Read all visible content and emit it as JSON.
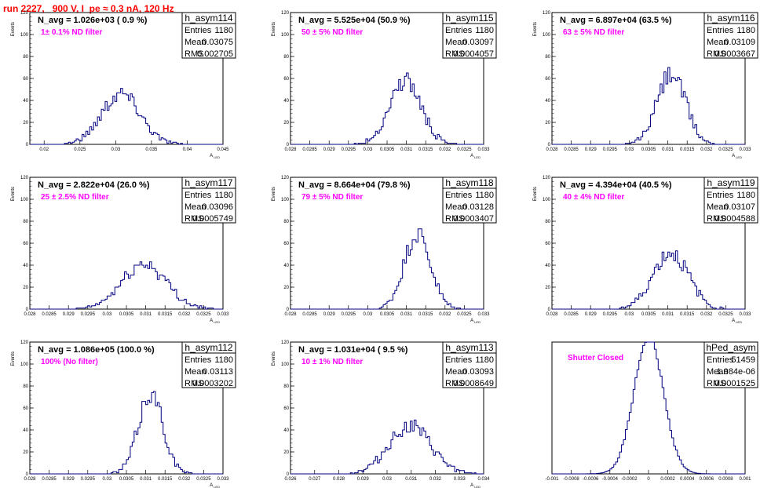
{
  "header": {
    "run_title": "run 2227,   900 V, I_pe ≈ 0.3 nA, 120 Hz"
  },
  "colors": {
    "line": "#000080",
    "annotation": "#ff00ff",
    "title": "#ff0000",
    "frame": "#000000"
  },
  "chart_data": [
    {
      "type": "bar",
      "name": "h_asym114",
      "navg": "N_avg = 1.026e+03 ( 0.9 %)",
      "annotation": "1± 0.1% ND filter",
      "stats": {
        "entries_label": "Entries",
        "entries": "1180",
        "mean_label": "Mean",
        "mean": "0.03075",
        "rms_label": "RMS",
        "rms": "0.002705"
      },
      "ylabel": "Events",
      "xlabel": "A_{LED}",
      "xlim": [
        0.018,
        0.045
      ],
      "ylim": [
        0,
        120
      ],
      "xticks": [
        "0.02",
        "0.025",
        "0.03",
        "0.035",
        "0.04",
        "0.045"
      ],
      "xtick_values": [
        0.02,
        0.025,
        0.03,
        0.035,
        0.04,
        0.045
      ],
      "yticks": [
        "0",
        "20",
        "40",
        "60",
        "80",
        "100",
        "120"
      ],
      "hist": {
        "mean": 0.03075,
        "rms": 0.002705,
        "n": 1180,
        "bins": 100,
        "seed": 114
      }
    },
    {
      "type": "bar",
      "name": "h_asym115",
      "navg": "N_avg = 5.525e+04 (50.9 %)",
      "annotation": "50 ± 5% ND filter",
      "stats": {
        "entries_label": "Entries",
        "entries": "1180",
        "mean_label": "Mean",
        "mean": "0.03097",
        "rms_label": "RMS",
        "rms": "0.0004057"
      },
      "ylabel": "Events",
      "xlabel": "A_{LED}",
      "xlim": [
        0.028,
        0.033
      ],
      "ylim": [
        0,
        120
      ],
      "xticks": [
        "0.028",
        "0.0285",
        "0.029",
        "0.0295",
        "0.03",
        "0.0305",
        "0.031",
        "0.0315",
        "0.032",
        "0.0325",
        "0.033"
      ],
      "xtick_values": [
        0.028,
        0.0285,
        0.029,
        0.0295,
        0.03,
        0.0305,
        0.031,
        0.0315,
        0.032,
        0.0325,
        0.033
      ],
      "yticks": [
        "0",
        "20",
        "40",
        "60",
        "80",
        "100",
        "120"
      ],
      "hist": {
        "mean": 0.03097,
        "rms": 0.0004057,
        "n": 1180,
        "bins": 100,
        "seed": 115
      }
    },
    {
      "type": "bar",
      "name": "h_asym116",
      "navg": "N_avg = 6.897e+04 (63.5 %)",
      "annotation": "63 ± 5% ND filter",
      "stats": {
        "entries_label": "Entries",
        "entries": "1180",
        "mean_label": "Mean",
        "mean": "0.03109",
        "rms_label": "RMS",
        "rms": "0.0003667"
      },
      "ylabel": "Events",
      "xlabel": "A_{LED}",
      "xlim": [
        0.028,
        0.033
      ],
      "ylim": [
        0,
        120
      ],
      "xticks": [
        "0.028",
        "0.0285",
        "0.029",
        "0.0295",
        "0.03",
        "0.0305",
        "0.031",
        "0.0315",
        "0.032",
        "0.0325",
        "0.033"
      ],
      "xtick_values": [
        0.028,
        0.0285,
        0.029,
        0.0295,
        0.03,
        0.0305,
        0.031,
        0.0315,
        0.032,
        0.0325,
        0.033
      ],
      "yticks": [
        "0",
        "20",
        "40",
        "60",
        "80",
        "100",
        "120"
      ],
      "hist": {
        "mean": 0.03109,
        "rms": 0.0003667,
        "n": 1180,
        "bins": 100,
        "seed": 116
      }
    },
    {
      "type": "bar",
      "name": "h_asym117",
      "navg": "N_avg = 2.822e+04 (26.0 %)",
      "annotation": "25 ± 2.5% ND filter",
      "stats": {
        "entries_label": "Entries",
        "entries": "1180",
        "mean_label": "Mean",
        "mean": "0.03096",
        "rms_label": "RMS",
        "rms": "0.0005749"
      },
      "ylabel": "Events",
      "xlabel": "A_{LED}",
      "xlim": [
        0.028,
        0.033
      ],
      "ylim": [
        0,
        120
      ],
      "xticks": [
        "0.028",
        "0.0285",
        "0.029",
        "0.0295",
        "0.03",
        "0.0305",
        "0.031",
        "0.0315",
        "0.032",
        "0.0325",
        "0.033"
      ],
      "xtick_values": [
        0.028,
        0.0285,
        0.029,
        0.0295,
        0.03,
        0.0305,
        0.031,
        0.0315,
        0.032,
        0.0325,
        0.033
      ],
      "yticks": [
        "0",
        "20",
        "40",
        "60",
        "80",
        "100",
        "120"
      ],
      "hist": {
        "mean": 0.03096,
        "rms": 0.0005749,
        "n": 1180,
        "bins": 100,
        "seed": 117
      }
    },
    {
      "type": "bar",
      "name": "h_asym118",
      "navg": "N_avg = 8.664e+04 (79.8 %)",
      "annotation": "79 ± 5% ND filter",
      "stats": {
        "entries_label": "Entries",
        "entries": "1180",
        "mean_label": "Mean",
        "mean": "0.03128",
        "rms_label": "RMS",
        "rms": "0.0003407"
      },
      "ylabel": "Events",
      "xlabel": "A_{LED}",
      "xlim": [
        0.028,
        0.033
      ],
      "ylim": [
        0,
        120
      ],
      "xticks": [
        "0.028",
        "0.0285",
        "0.029",
        "0.0295",
        "0.03",
        "0.0305",
        "0.031",
        "0.0315",
        "0.032",
        "0.0325",
        "0.033"
      ],
      "xtick_values": [
        0.028,
        0.0285,
        0.029,
        0.0295,
        0.03,
        0.0305,
        0.031,
        0.0315,
        0.032,
        0.0325,
        0.033
      ],
      "yticks": [
        "0",
        "20",
        "40",
        "60",
        "80",
        "100",
        "120"
      ],
      "hist": {
        "mean": 0.03128,
        "rms": 0.0003407,
        "n": 1180,
        "bins": 100,
        "seed": 118
      }
    },
    {
      "type": "bar",
      "name": "h_asym119",
      "navg": "N_avg = 4.394e+04 (40.5 %)",
      "annotation": "40 ± 4% ND filter",
      "stats": {
        "entries_label": "Entries",
        "entries": "1180",
        "mean_label": "Mean",
        "mean": "0.03107",
        "rms_label": "RMS",
        "rms": "0.0004588"
      },
      "ylabel": "Events",
      "xlabel": "A_{LED}",
      "xlim": [
        0.028,
        0.033
      ],
      "ylim": [
        0,
        120
      ],
      "xticks": [
        "0.028",
        "0.0285",
        "0.029",
        "0.0295",
        "0.03",
        "0.0305",
        "0.031",
        "0.0315",
        "0.032",
        "0.0325",
        "0.033"
      ],
      "xtick_values": [
        0.028,
        0.0285,
        0.029,
        0.0295,
        0.03,
        0.0305,
        0.031,
        0.0315,
        0.032,
        0.0325,
        0.033
      ],
      "yticks": [
        "0",
        "20",
        "40",
        "60",
        "80",
        "100",
        "120"
      ],
      "hist": {
        "mean": 0.03107,
        "rms": 0.0004588,
        "n": 1180,
        "bins": 100,
        "seed": 119
      }
    },
    {
      "type": "bar",
      "name": "h_asym112",
      "navg": "N_avg = 1.086e+05 (100.0 %)",
      "annotation": "100% (No filter)",
      "stats": {
        "entries_label": "Entries",
        "entries": "1180",
        "mean_label": "Mean",
        "mean": "0.03113",
        "rms_label": "RMS",
        "rms": "0.0003202"
      },
      "ylabel": "Events",
      "xlabel": "A_{LED}",
      "xlim": [
        0.028,
        0.033
      ],
      "ylim": [
        0,
        120
      ],
      "xticks": [
        "0.028",
        "0.0285",
        "0.029",
        "0.0295",
        "0.03",
        "0.0305",
        "0.031",
        "0.0315",
        "0.032",
        "0.0325",
        "0.033"
      ],
      "xtick_values": [
        0.028,
        0.0285,
        0.029,
        0.0295,
        0.03,
        0.0305,
        0.031,
        0.0315,
        0.032,
        0.0325,
        0.033
      ],
      "yticks": [
        "0",
        "20",
        "40",
        "60",
        "80",
        "100",
        "120"
      ],
      "hist": {
        "mean": 0.03113,
        "rms": 0.0003202,
        "n": 1180,
        "bins": 100,
        "seed": 112
      }
    },
    {
      "type": "bar",
      "name": "h_asym113",
      "navg": "N_avg = 1.031e+04 ( 9.5 %)",
      "annotation": "10 ± 1% ND filter",
      "stats": {
        "entries_label": "Entries",
        "entries": "1180",
        "mean_label": "Mean",
        "mean": "0.03093",
        "rms_label": "RMS",
        "rms": "0.0008649"
      },
      "ylabel": "Events",
      "xlabel": "A_{LED}",
      "xlim": [
        0.026,
        0.034
      ],
      "ylim": [
        0,
        120
      ],
      "xticks": [
        "0.026",
        "0.027",
        "0.028",
        "0.029",
        "0.03",
        "0.031",
        "0.032",
        "0.033",
        "0.034"
      ],
      "xtick_values": [
        0.026,
        0.027,
        0.028,
        0.029,
        0.03,
        0.031,
        0.032,
        0.033,
        0.034
      ],
      "yticks": [
        "0",
        "20",
        "40",
        "60",
        "80",
        "100",
        "120"
      ],
      "hist": {
        "mean": 0.03093,
        "rms": 0.0008649,
        "n": 1180,
        "bins": 100,
        "seed": 113
      }
    },
    {
      "type": "bar",
      "name": "hPed_asym",
      "navg": "",
      "annotation": "Shutter Closed",
      "stats": {
        "entries_label": "Entries",
        "entries": "51459",
        "mean_label": "Mean",
        "mean": "1.984e-06",
        "rms_label": "RMS",
        "rms": "0.0001525"
      },
      "ylabel": "",
      "xlabel": "",
      "xlim": [
        -0.001,
        0.001
      ],
      "ylim": [
        0,
        2600
      ],
      "xticks": [
        "-0.001",
        "-0.0008",
        "-0.0006",
        "-0.0004",
        "-0.0002",
        "0",
        "0.0002",
        "0.0004",
        "0.0006",
        "0.0008",
        "0.001"
      ],
      "xtick_values": [
        -0.001,
        -0.0008,
        -0.0006,
        -0.0004,
        -0.0002,
        0,
        0.0002,
        0.0004,
        0.0006,
        0.0008,
        0.001
      ],
      "yticks": [],
      "hist": {
        "mean": 2e-06,
        "rms": 0.0001525,
        "n": 51459,
        "bins": 100,
        "seed": 1
      }
    }
  ]
}
